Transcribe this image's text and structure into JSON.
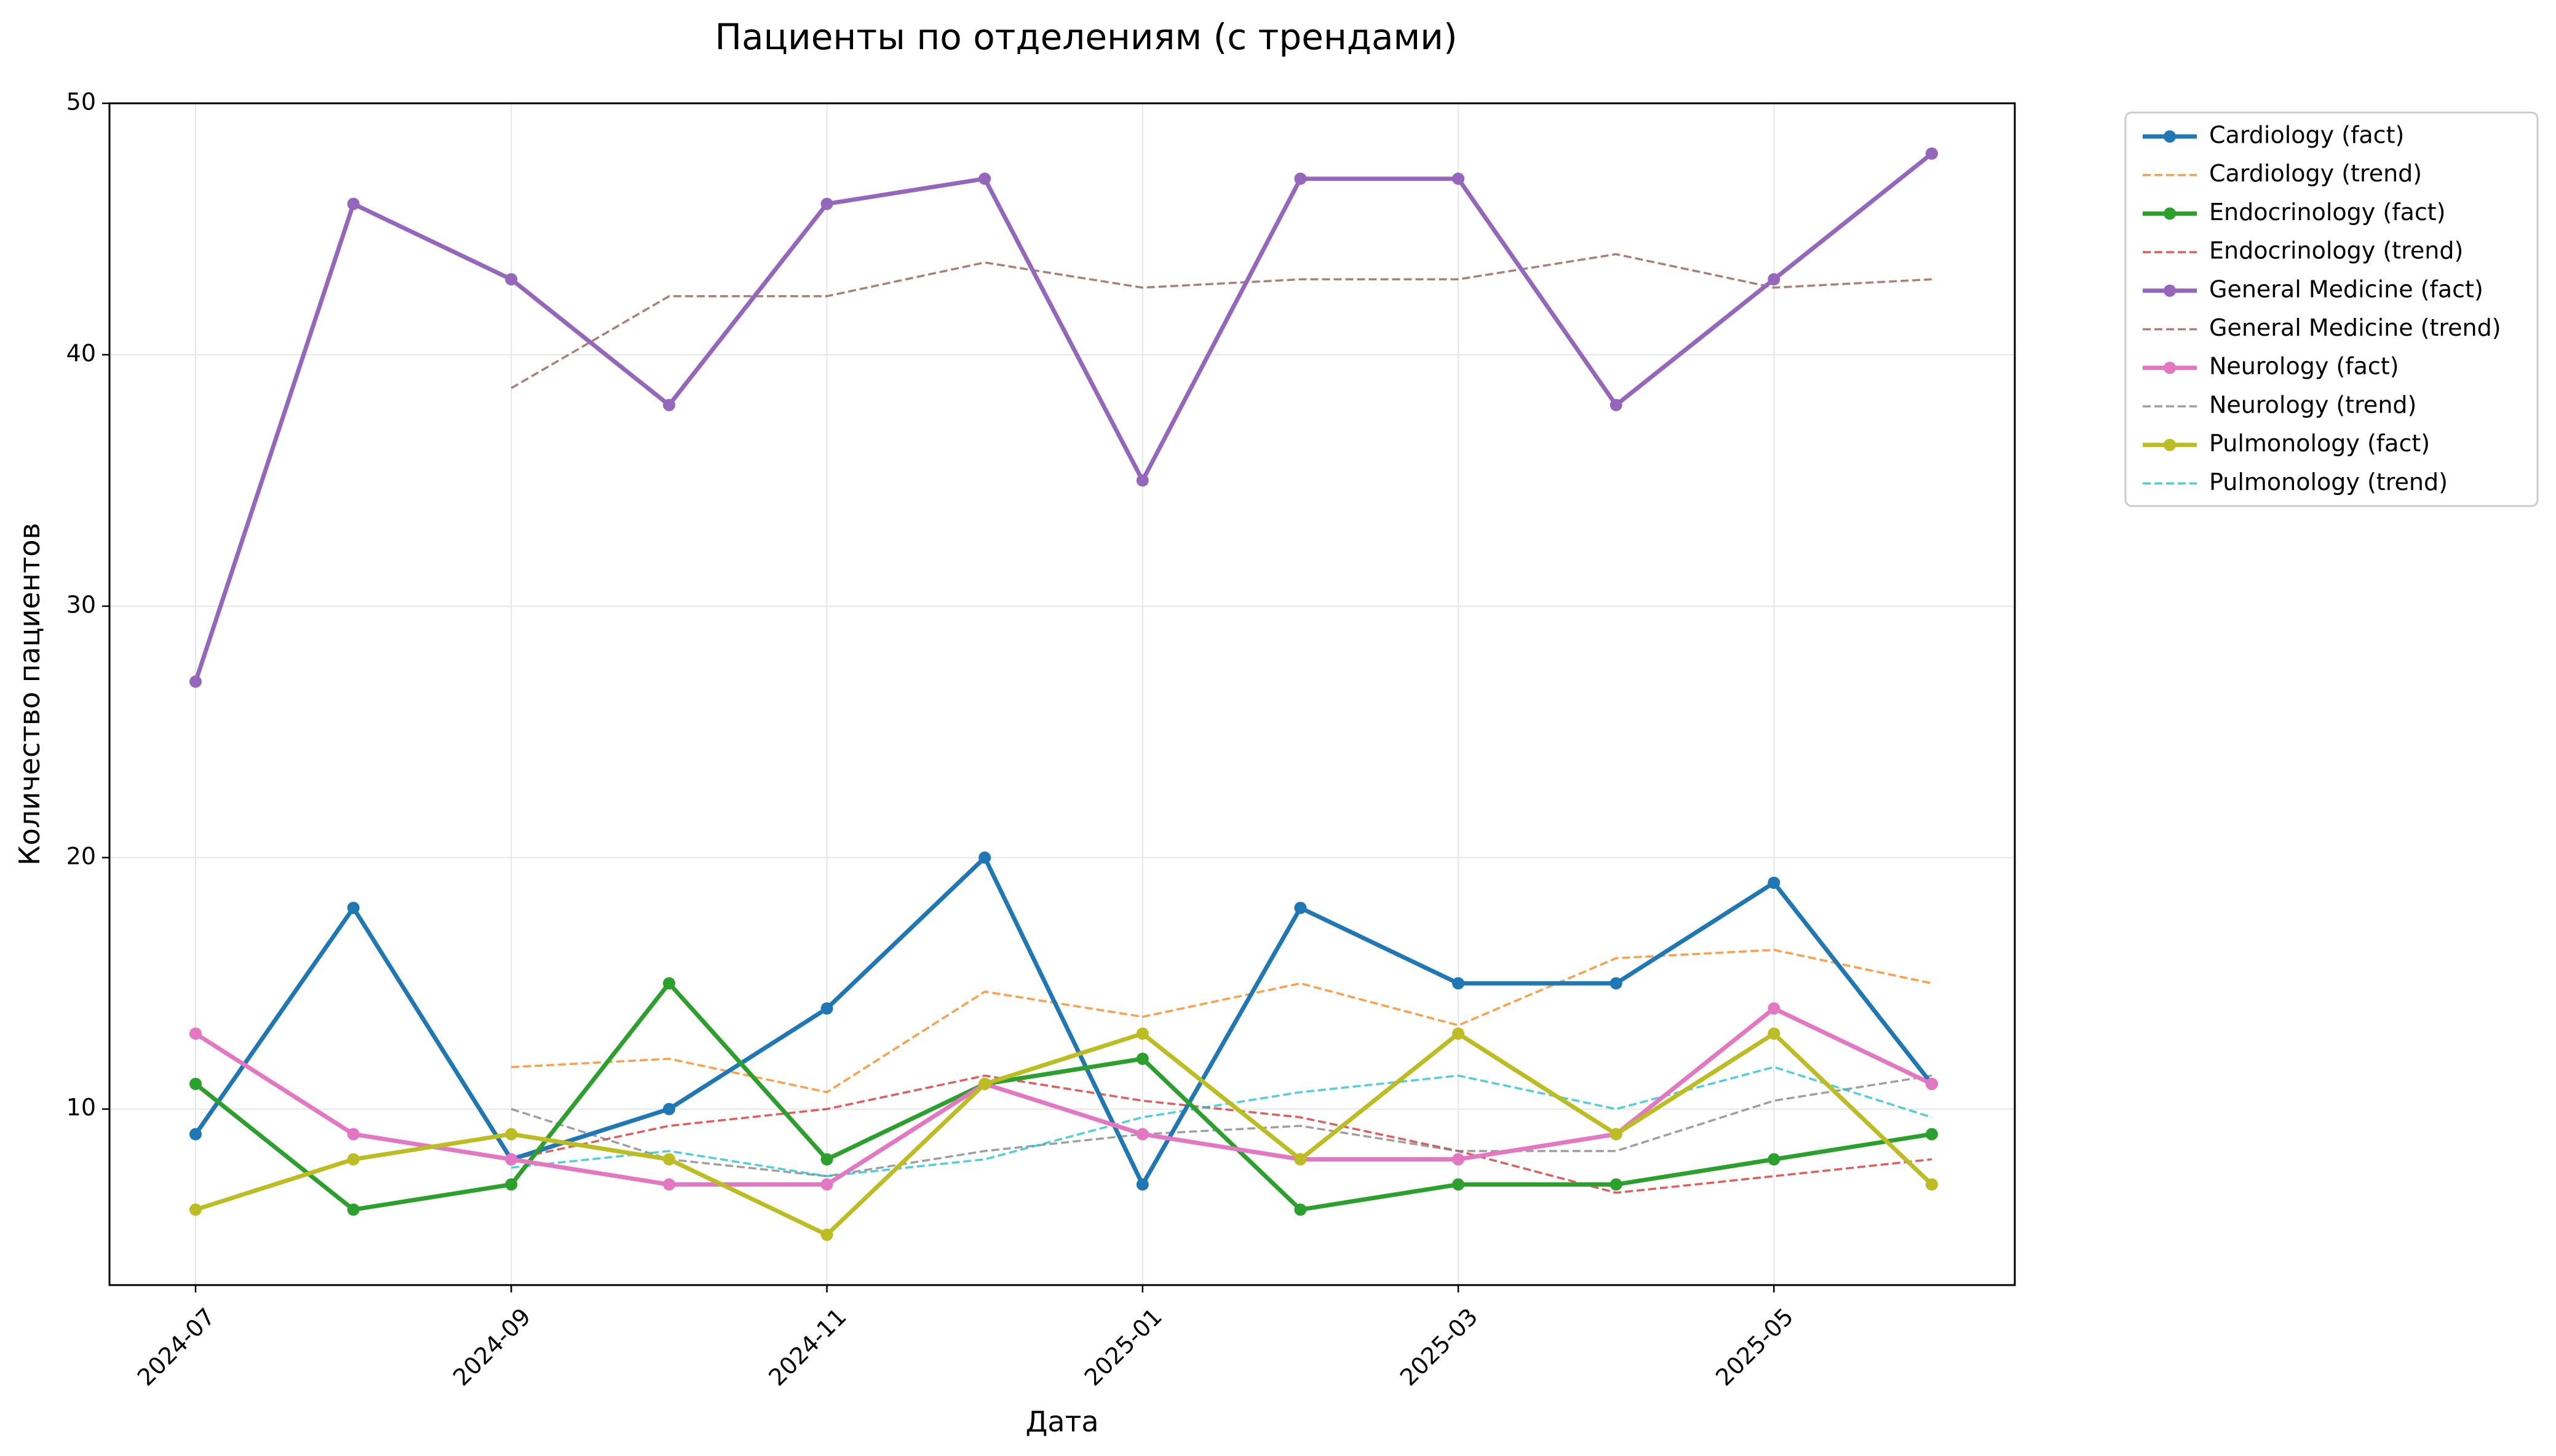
{
  "chart_data": {
    "type": "line",
    "title": "Пациенты по отделениям (с трендами)",
    "xlabel": "Дата",
    "ylabel": "Количество пациентов",
    "x": [
      "2024-07",
      "2024-08",
      "2024-09",
      "2024-10",
      "2024-11",
      "2024-12",
      "2025-01",
      "2025-02",
      "2025-03",
      "2025-04",
      "2025-05",
      "2025-06"
    ],
    "x_ticks": [
      "2024-07",
      "2024-09",
      "2024-11",
      "2025-01",
      "2025-03",
      "2025-05"
    ],
    "y_ticks": [
      "10",
      "20",
      "30",
      "40",
      "50"
    ],
    "ylim": [
      3,
      50
    ],
    "grid": true,
    "legend_position": "outside-top-right",
    "series": [
      {
        "name": "Cardiology (fact)",
        "style": "fact",
        "color": "#1f77b4",
        "values": [
          9,
          18,
          8,
          10,
          14,
          20,
          7,
          18,
          15,
          15,
          19,
          11
        ]
      },
      {
        "name": "Cardiology (trend)",
        "style": "trend",
        "color": "#ff7f0e",
        "values": [
          null,
          null,
          11.67,
          12,
          10.67,
          14.67,
          13.67,
          15,
          13.33,
          16,
          16.33,
          15
        ]
      },
      {
        "name": "Endocrinology (fact)",
        "style": "fact",
        "color": "#2ca02c",
        "values": [
          11,
          6,
          7,
          15,
          8,
          11,
          12,
          6,
          7,
          7,
          8,
          9
        ]
      },
      {
        "name": "Endocrinology (trend)",
        "style": "trend",
        "color": "#d62728",
        "values": [
          null,
          null,
          8,
          9.33,
          10,
          11.33,
          10.33,
          9.67,
          8.33,
          6.67,
          7.33,
          8
        ]
      },
      {
        "name": "General Medicine (fact)",
        "style": "fact",
        "color": "#9467bd",
        "values": [
          27,
          46,
          43,
          38,
          46,
          47,
          35,
          47,
          47,
          38,
          43,
          48
        ]
      },
      {
        "name": "General Medicine (trend)",
        "style": "trend",
        "color": "#8c564b",
        "values": [
          null,
          null,
          38.67,
          42.33,
          42.33,
          43.67,
          42.67,
          43,
          43,
          44,
          42.67,
          43
        ]
      },
      {
        "name": "Neurology (fact)",
        "style": "fact",
        "color": "#e377c2",
        "values": [
          13,
          9,
          8,
          7,
          7,
          11,
          9,
          8,
          8,
          9,
          14,
          11
        ]
      },
      {
        "name": "Neurology (trend)",
        "style": "trend",
        "color": "#7f7f7f",
        "values": [
          null,
          null,
          10,
          8,
          7.33,
          8.33,
          9,
          9.33,
          8.33,
          8.33,
          10.33,
          11.33
        ]
      },
      {
        "name": "Pulmonology (fact)",
        "style": "fact",
        "color": "#bcbd22",
        "values": [
          6,
          8,
          9,
          8,
          5,
          11,
          13,
          8,
          13,
          9,
          13,
          7
        ]
      },
      {
        "name": "Pulmonology (trend)",
        "style": "trend",
        "color": "#17becf",
        "values": [
          null,
          null,
          7.67,
          8.33,
          7.33,
          8,
          9.67,
          10.67,
          11.33,
          10,
          11.67,
          9.67
        ]
      }
    ]
  }
}
